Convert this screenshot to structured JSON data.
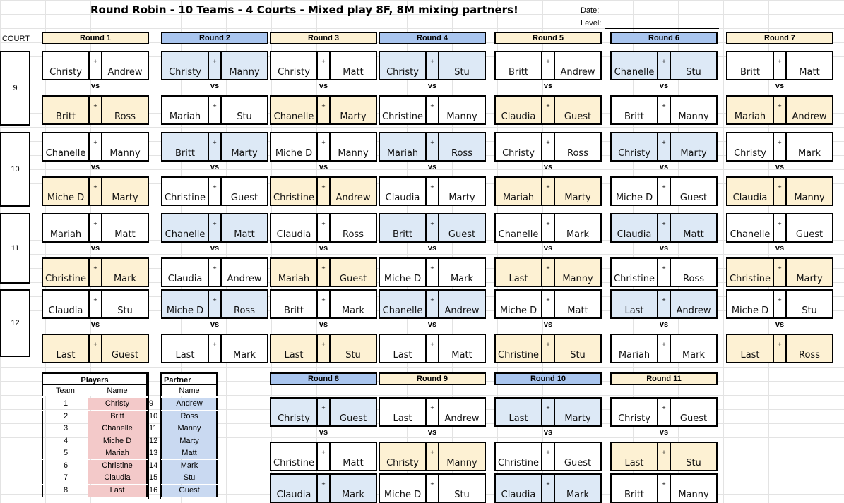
{
  "title": "Round Robin - 10 Teams - 4 Courts - Mixed play 8F, 8M mixing partners!",
  "date_label": "Date:",
  "level_label": "Level:",
  "court_header": "COURT",
  "colors": {
    "yellow_fill": "#fdf1d3",
    "blue_fill": "#dde9f6",
    "blue_header": "#a9c5ee",
    "pink": "#f3c9c9",
    "lightblue": "#c9d9f1"
  },
  "courts": [
    "9",
    "10",
    "11",
    "12"
  ],
  "vs_label": "vs",
  "plus_label": "+",
  "rounds_top": [
    {
      "label": "Round 1",
      "matches": [
        [
          "Christy",
          "Andrew",
          "Britt",
          "Ross"
        ],
        [
          "Chanelle",
          "Manny",
          "Miche D",
          "Marty"
        ],
        [
          "Mariah",
          "Matt",
          "Christine",
          "Mark"
        ],
        [
          "Claudia",
          "Stu",
          "Last",
          "Guest"
        ]
      ]
    },
    {
      "label": "Round 2",
      "matches": [
        [
          "Christy",
          "Manny",
          "Mariah",
          "Stu"
        ],
        [
          "Britt",
          "Marty",
          "Christine",
          "Guest"
        ],
        [
          "Chanelle",
          "Matt",
          "Claudia",
          "Andrew"
        ],
        [
          "Miche D",
          "Ross",
          "Last",
          "Mark"
        ]
      ]
    },
    {
      "label": "Round 3",
      "matches": [
        [
          "Christy",
          "Matt",
          "Chanelle",
          "Marty"
        ],
        [
          "Miche D",
          "Manny",
          "Christine",
          "Andrew"
        ],
        [
          "Claudia",
          "Ross",
          "Mariah",
          "Guest"
        ],
        [
          "Britt",
          "Mark",
          "Last",
          "Stu"
        ]
      ]
    },
    {
      "label": "Round 4",
      "matches": [
        [
          "Christy",
          "Stu",
          "Christine",
          "Manny"
        ],
        [
          "Mariah",
          "Ross",
          "Claudia",
          "Marty"
        ],
        [
          "Britt",
          "Guest",
          "Miche D",
          "Mark"
        ],
        [
          "Chanelle",
          "Andrew",
          "Last",
          "Matt"
        ]
      ]
    },
    {
      "label": "Round 5",
      "matches": [
        [
          "Britt",
          "Andrew",
          "Claudia",
          "Guest"
        ],
        [
          "Christy",
          "Ross",
          "Mariah",
          "Marty"
        ],
        [
          "Chanelle",
          "Mark",
          "Last",
          "Manny"
        ],
        [
          "Miche D",
          "Matt",
          "Christine",
          "Stu"
        ]
      ]
    },
    {
      "label": "Round 6",
      "matches": [
        [
          "Chanelle",
          "Stu",
          "Britt",
          "Manny"
        ],
        [
          "Christy",
          "Marty",
          "Miche D",
          "Guest"
        ],
        [
          "Claudia",
          "Matt",
          "Christine",
          "Ross"
        ],
        [
          "Last",
          "Andrew",
          "Mariah",
          "Mark"
        ]
      ]
    },
    {
      "label": "Round 7",
      "matches": [
        [
          "Britt",
          "Matt",
          "Mariah",
          "Andrew"
        ],
        [
          "Christy",
          "Mark",
          "Claudia",
          "Manny"
        ],
        [
          "Chanelle",
          "Guest",
          "Christine",
          "Marty"
        ],
        [
          "Miche D",
          "Stu",
          "Last",
          "Ross"
        ]
      ]
    }
  ],
  "rounds_bottom": [
    {
      "label": "Round 8",
      "matches": [
        [
          "Christy",
          "Guest",
          "Christine",
          "Matt"
        ],
        [
          "Claudia",
          "Mark",
          "",
          ""
        ]
      ]
    },
    {
      "label": "Round 9",
      "matches": [
        [
          "Last",
          "Andrew",
          "Christy",
          "Manny"
        ],
        [
          "Miche D",
          "Stu",
          "",
          ""
        ]
      ]
    },
    {
      "label": "Round 10",
      "matches": [
        [
          "Last",
          "Marty",
          "Christine",
          "Guest"
        ],
        [
          "Claudia",
          "Mark",
          "",
          ""
        ]
      ]
    },
    {
      "label": "Round 11",
      "matches": [
        [
          "Christy",
          "Guest",
          "Last",
          "Stu"
        ],
        [
          "Britt",
          "Manny",
          "",
          ""
        ]
      ]
    }
  ],
  "players_table": {
    "players_header": "Players",
    "partner_header": "Partner",
    "team_col": "Team",
    "name_col": "Name",
    "partner_name_col": "Name",
    "rows": [
      {
        "team": "1",
        "name": "Christy",
        "pteam": "9",
        "pname": "Andrew"
      },
      {
        "team": "2",
        "name": "Britt",
        "pteam": "10",
        "pname": "Ross"
      },
      {
        "team": "3",
        "name": "Chanelle",
        "pteam": "11",
        "pname": "Manny"
      },
      {
        "team": "4",
        "name": "Miche D",
        "pteam": "12",
        "pname": "Marty"
      },
      {
        "team": "5",
        "name": "Mariah",
        "pteam": "13",
        "pname": "Matt"
      },
      {
        "team": "6",
        "name": "Christine",
        "pteam": "14",
        "pname": "Mark"
      },
      {
        "team": "7",
        "name": "Claudia",
        "pteam": "15",
        "pname": "Stu"
      },
      {
        "team": "8",
        "name": "Last",
        "pteam": "16",
        "pname": "Guest"
      }
    ]
  }
}
